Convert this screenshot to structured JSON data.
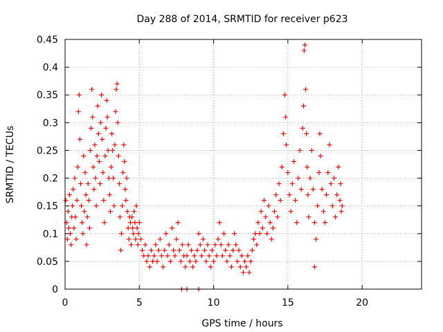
{
  "chart_data": {
    "type": "scatter",
    "title": "Day 288 of 2014, SRMTID for receiver p623",
    "xlabel": "GPS time / hours",
    "ylabel": "SRMTID / TECUs",
    "xlim": [
      0,
      24
    ],
    "ylim": [
      0,
      0.45
    ],
    "xticks": [
      0,
      5,
      10,
      15,
      20
    ],
    "yticks": [
      0,
      0.05,
      0.1,
      0.15,
      0.2,
      0.25,
      0.3,
      0.35,
      0.4,
      0.45
    ],
    "ytick_labels": [
      "0",
      "0.05",
      "0.1",
      "0.15",
      "0.2",
      "0.25",
      "0.3",
      "0.35",
      "0.4",
      "0.45"
    ],
    "grid": true,
    "marker": "+",
    "color": "#ff0000",
    "series": [
      {
        "name": "SRMTID",
        "points": [
          [
            0.05,
            0.16
          ],
          [
            0.1,
            0.12
          ],
          [
            0.15,
            0.09
          ],
          [
            0.2,
            0.14
          ],
          [
            0.25,
            0.11
          ],
          [
            0.3,
            0.17
          ],
          [
            0.35,
            0.1
          ],
          [
            0.4,
            0.08
          ],
          [
            0.45,
            0.13
          ],
          [
            0.5,
            0.15
          ],
          [
            0.55,
            0.18
          ],
          [
            0.6,
            0.11
          ],
          [
            0.65,
            0.2
          ],
          [
            0.7,
            0.13
          ],
          [
            0.75,
            0.09
          ],
          [
            0.8,
            0.16
          ],
          [
            0.85,
            0.22
          ],
          [
            0.9,
            0.32
          ],
          [
            0.95,
            0.35
          ],
          [
            1.0,
            0.27
          ],
          [
            1.05,
            0.19
          ],
          [
            1.1,
            0.15
          ],
          [
            1.15,
            0.12
          ],
          [
            1.2,
            0.1
          ],
          [
            1.25,
            0.24
          ],
          [
            1.3,
            0.14
          ],
          [
            1.35,
            0.21
          ],
          [
            1.4,
            0.17
          ],
          [
            1.45,
            0.08
          ],
          [
            1.5,
            0.13
          ],
          [
            1.55,
            0.19
          ],
          [
            1.6,
            0.16
          ],
          [
            1.65,
            0.11
          ],
          [
            1.7,
            0.25
          ],
          [
            1.75,
            0.29
          ],
          [
            1.8,
            0.36
          ],
          [
            1.85,
            0.31
          ],
          [
            1.9,
            0.22
          ],
          [
            1.95,
            0.18
          ],
          [
            2.0,
            0.26
          ],
          [
            2.05,
            0.2
          ],
          [
            2.1,
            0.15
          ],
          [
            2.15,
            0.24
          ],
          [
            2.2,
            0.33
          ],
          [
            2.25,
            0.28
          ],
          [
            2.3,
            0.23
          ],
          [
            2.35,
            0.19
          ],
          [
            2.4,
            0.3
          ],
          [
            2.45,
            0.35
          ],
          [
            2.5,
            0.27
          ],
          [
            2.55,
            0.21
          ],
          [
            2.6,
            0.16
          ],
          [
            2.65,
            0.12
          ],
          [
            2.7,
            0.24
          ],
          [
            2.75,
            0.29
          ],
          [
            2.8,
            0.34
          ],
          [
            2.85,
            0.31
          ],
          [
            2.9,
            0.25
          ],
          [
            2.95,
            0.2
          ],
          [
            3.0,
            0.17
          ],
          [
            3.05,
            0.14
          ],
          [
            3.1,
            0.22
          ],
          [
            3.15,
            0.28
          ],
          [
            3.2,
            0.25
          ],
          [
            3.25,
            0.2
          ],
          [
            3.3,
            0.15
          ],
          [
            3.35,
            0.26
          ],
          [
            3.4,
            0.32
          ],
          [
            3.45,
            0.36
          ],
          [
            3.5,
            0.37
          ],
          [
            3.55,
            0.3
          ],
          [
            3.6,
            0.24
          ],
          [
            3.65,
            0.19
          ],
          [
            3.7,
            0.13
          ],
          [
            3.75,
            0.07
          ],
          [
            3.8,
            0.1
          ],
          [
            3.85,
            0.15
          ],
          [
            3.9,
            0.21
          ],
          [
            3.95,
            0.26
          ],
          [
            4.0,
            0.23
          ],
          [
            4.05,
            0.18
          ],
          [
            4.1,
            0.16
          ],
          [
            4.15,
            0.2
          ],
          [
            4.2,
            0.14
          ],
          [
            4.25,
            0.11
          ],
          [
            4.3,
            0.09
          ],
          [
            4.35,
            0.13
          ],
          [
            4.4,
            0.12
          ],
          [
            4.45,
            0.08
          ],
          [
            4.5,
            0.13
          ],
          [
            4.55,
            0.11
          ],
          [
            4.6,
            0.1
          ],
          [
            4.65,
            0.14
          ],
          [
            4.7,
            0.12
          ],
          [
            4.75,
            0.09
          ],
          [
            4.8,
            0.15
          ],
          [
            4.85,
            0.11
          ],
          [
            4.9,
            0.08
          ],
          [
            4.95,
            0.1
          ],
          [
            5.0,
            0.12
          ],
          [
            5.1,
            0.09
          ],
          [
            5.2,
            0.07
          ],
          [
            5.3,
            0.06
          ],
          [
            5.4,
            0.08
          ],
          [
            5.5,
            0.05
          ],
          [
            5.6,
            0.06
          ],
          [
            5.7,
            0.04
          ],
          [
            5.8,
            0.07
          ],
          [
            5.9,
            0.05
          ],
          [
            6.0,
            0.06
          ],
          [
            6.1,
            0.08
          ],
          [
            6.2,
            0.05
          ],
          [
            6.3,
            0.07
          ],
          [
            6.4,
            0.09
          ],
          [
            6.5,
            0.06
          ],
          [
            6.6,
            0.04
          ],
          [
            6.7,
            0.07
          ],
          [
            6.8,
            0.1
          ],
          [
            6.9,
            0.06
          ],
          [
            7.0,
            0.08
          ],
          [
            7.1,
            0.05
          ],
          [
            7.2,
            0.11
          ],
          [
            7.3,
            0.07
          ],
          [
            7.4,
            0.06
          ],
          [
            7.5,
            0.09
          ],
          [
            7.6,
            0.12
          ],
          [
            7.7,
            0.07
          ],
          [
            7.8,
            0.05
          ],
          [
            7.9,
            0.08
          ],
          [
            8.0,
            0.06
          ],
          [
            8.1,
            0.04
          ],
          [
            8.2,
            0.06
          ],
          [
            8.3,
            0.08
          ],
          [
            8.4,
            0.05
          ],
          [
            8.5,
            0.07
          ],
          [
            8.6,
            0.04
          ],
          [
            8.7,
            0.06
          ],
          [
            8.8,
            0.05
          ],
          [
            8.9,
            0.07
          ],
          [
            9.0,
            0.1
          ],
          [
            9.1,
            0.08
          ],
          [
            9.2,
            0.06
          ],
          [
            9.3,
            0.09
          ],
          [
            9.4,
            0.07
          ],
          [
            9.5,
            0.05
          ],
          [
            9.6,
            0.08
          ],
          [
            9.7,
            0.06
          ],
          [
            9.8,
            0.04
          ],
          [
            9.9,
            0.07
          ],
          [
            10.0,
            0.05
          ],
          [
            10.1,
            0.08
          ],
          [
            10.2,
            0.06
          ],
          [
            10.3,
            0.09
          ],
          [
            10.4,
            0.12
          ],
          [
            10.5,
            0.08
          ],
          [
            10.6,
            0.06
          ],
          [
            10.7,
            0.1
          ],
          [
            10.8,
            0.07
          ],
          [
            10.9,
            0.05
          ],
          [
            11.0,
            0.08
          ],
          [
            11.1,
            0.06
          ],
          [
            11.2,
            0.04
          ],
          [
            11.3,
            0.07
          ],
          [
            11.4,
            0.1
          ],
          [
            11.5,
            0.08
          ],
          [
            11.6,
            0.05
          ],
          [
            11.7,
            0.07
          ],
          [
            11.8,
            0.04
          ],
          [
            11.9,
            0.06
          ],
          [
            12.0,
            0.03
          ],
          [
            12.1,
            0.05
          ],
          [
            12.2,
            0.04
          ],
          [
            12.3,
            0.06
          ],
          [
            12.4,
            0.03
          ],
          [
            12.5,
            0.05
          ],
          [
            12.6,
            0.07
          ],
          [
            12.7,
            0.09
          ],
          [
            12.8,
            0.1
          ],
          [
            12.9,
            0.08
          ],
          [
            13.0,
            0.12
          ],
          [
            13.1,
            0.1
          ],
          [
            13.2,
            0.14
          ],
          [
            13.3,
            0.11
          ],
          [
            13.4,
            0.16
          ],
          [
            13.5,
            0.13
          ],
          [
            13.6,
            0.1
          ],
          [
            13.7,
            0.15
          ],
          [
            13.8,
            0.12
          ],
          [
            13.9,
            0.09
          ],
          [
            14.0,
            0.11
          ],
          [
            14.1,
            0.14
          ],
          [
            14.2,
            0.17
          ],
          [
            14.3,
            0.13
          ],
          [
            14.4,
            0.19
          ],
          [
            14.5,
            0.16
          ],
          [
            14.6,
            0.22
          ],
          [
            14.7,
            0.28
          ],
          [
            14.8,
            0.35
          ],
          [
            14.85,
            0.31
          ],
          [
            14.9,
            0.26
          ],
          [
            15.0,
            0.21
          ],
          [
            15.1,
            0.17
          ],
          [
            15.2,
            0.14
          ],
          [
            15.3,
            0.19
          ],
          [
            15.4,
            0.23
          ],
          [
            15.5,
            0.16
          ],
          [
            15.6,
            0.12
          ],
          [
            15.7,
            0.2
          ],
          [
            15.8,
            0.25
          ],
          [
            15.9,
            0.18
          ],
          [
            16.0,
            0.29
          ],
          [
            16.05,
            0.33
          ],
          [
            16.1,
            0.43
          ],
          [
            16.15,
            0.44
          ],
          [
            16.2,
            0.36
          ],
          [
            16.25,
            0.28
          ],
          [
            16.3,
            0.22
          ],
          [
            16.35,
            0.17
          ],
          [
            16.4,
            0.13
          ],
          [
            16.5,
            0.2
          ],
          [
            16.6,
            0.25
          ],
          [
            16.7,
            0.18
          ],
          [
            16.8,
            0.12
          ],
          [
            16.9,
            0.09
          ],
          [
            17.0,
            0.15
          ],
          [
            17.1,
            0.21
          ],
          [
            17.15,
            0.28
          ],
          [
            17.2,
            0.24
          ],
          [
            17.3,
            0.18
          ],
          [
            17.4,
            0.14
          ],
          [
            17.5,
            0.12
          ],
          [
            17.6,
            0.17
          ],
          [
            17.7,
            0.21
          ],
          [
            17.8,
            0.26
          ],
          [
            17.9,
            0.19
          ],
          [
            18.0,
            0.15
          ],
          [
            18.1,
            0.2
          ],
          [
            18.2,
            0.13
          ],
          [
            18.3,
            0.17
          ],
          [
            18.4,
            0.22
          ],
          [
            18.5,
            0.16
          ],
          [
            18.55,
            0.19
          ],
          [
            18.6,
            0.14
          ],
          [
            18.65,
            0.15
          ],
          [
            16.8,
            0.04
          ],
          [
            7.85,
            0.0
          ],
          [
            8.2,
            0.0
          ],
          [
            9.0,
            0.0
          ]
        ]
      }
    ]
  }
}
